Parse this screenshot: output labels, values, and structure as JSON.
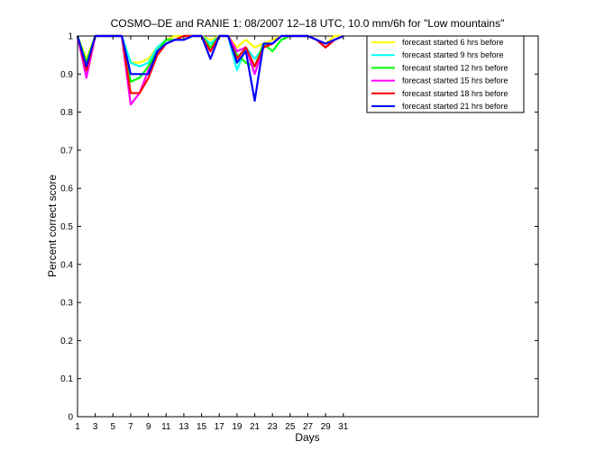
{
  "chart_data": {
    "type": "line",
    "title": "COSMO–DE and RANIE 1: 08/2007 12–18 UTC, 10.0 mm/6h for \"Low mountains\"",
    "xlabel": "Days",
    "ylabel": "Percent correct score",
    "xlim": [
      1,
      53
    ],
    "ylim": [
      0,
      1
    ],
    "x_ticks": [
      1,
      3,
      5,
      7,
      9,
      11,
      13,
      15,
      17,
      19,
      21,
      23,
      25,
      27,
      29,
      31
    ],
    "y_ticks": [
      0,
      0.1,
      0.2,
      0.3,
      0.4,
      0.5,
      0.6,
      0.7,
      0.8,
      0.9,
      1
    ],
    "grid": false,
    "legend_position": "top-right",
    "x": [
      1,
      2,
      3,
      4,
      5,
      6,
      7,
      8,
      9,
      10,
      11,
      12,
      13,
      14,
      15,
      16,
      17,
      18,
      19,
      20,
      21,
      22,
      23,
      24,
      25,
      26,
      27,
      28,
      29,
      30,
      31
    ],
    "series": [
      {
        "name": "forecast started 6 hrs before",
        "color": "#ffff00",
        "values": [
          1,
          0.94,
          1,
          1,
          1,
          1,
          0.93,
          0.93,
          0.94,
          0.97,
          0.99,
          1,
          1,
          1,
          1,
          0.99,
          1,
          1,
          0.97,
          0.99,
          0.97,
          0.98,
          0.99,
          1,
          1,
          1,
          1,
          0.99,
          0.98,
          1,
          1
        ]
      },
      {
        "name": "forecast started 9 hrs before",
        "color": "#00ffff",
        "values": [
          1,
          0.93,
          1,
          1,
          1,
          1,
          0.93,
          0.92,
          0.93,
          0.97,
          0.99,
          0.99,
          1,
          1,
          1,
          0.98,
          1,
          1,
          0.91,
          0.97,
          0.94,
          0.97,
          0.98,
          1,
          1,
          1,
          1,
          0.99,
          0.97,
          0.99,
          1
        ]
      },
      {
        "name": "forecast started 12 hrs before",
        "color": "#00ff00",
        "values": [
          1,
          0.93,
          1,
          1,
          1,
          1,
          0.88,
          0.89,
          0.92,
          0.96,
          0.99,
          0.99,
          1,
          1,
          1,
          0.97,
          1,
          1,
          0.95,
          0.93,
          0.92,
          0.98,
          0.96,
          0.99,
          1,
          1,
          1,
          0.99,
          0.97,
          0.99,
          1
        ]
      },
      {
        "name": "forecast started 15 hrs before",
        "color": "#ff00ff",
        "values": [
          1,
          0.89,
          1,
          1,
          1,
          1,
          0.82,
          0.85,
          0.91,
          0.95,
          0.98,
          0.99,
          1,
          1,
          1,
          0.96,
          1,
          1,
          0.96,
          0.97,
          0.9,
          0.97,
          0.98,
          1,
          1,
          1,
          1,
          0.99,
          0.97,
          0.99,
          1
        ]
      },
      {
        "name": "forecast started 18 hrs before",
        "color": "#ff0000",
        "values": [
          1,
          0.91,
          1,
          1,
          1,
          1,
          0.85,
          0.85,
          0.89,
          0.95,
          0.98,
          0.99,
          1,
          1,
          1,
          0.96,
          1,
          1,
          0.94,
          0.97,
          0.92,
          0.97,
          0.98,
          1,
          1,
          1,
          1,
          0.99,
          0.97,
          0.99,
          1
        ]
      },
      {
        "name": "forecast started 21 hrs before",
        "color": "#0000ff",
        "values": [
          1,
          0.92,
          1,
          1,
          1,
          1,
          0.9,
          0.9,
          0.9,
          0.96,
          0.98,
          0.99,
          0.99,
          1,
          1,
          0.94,
          1,
          1,
          0.93,
          0.96,
          0.83,
          0.98,
          0.98,
          1,
          1,
          1,
          1,
          0.99,
          0.98,
          0.99,
          1
        ]
      }
    ]
  }
}
